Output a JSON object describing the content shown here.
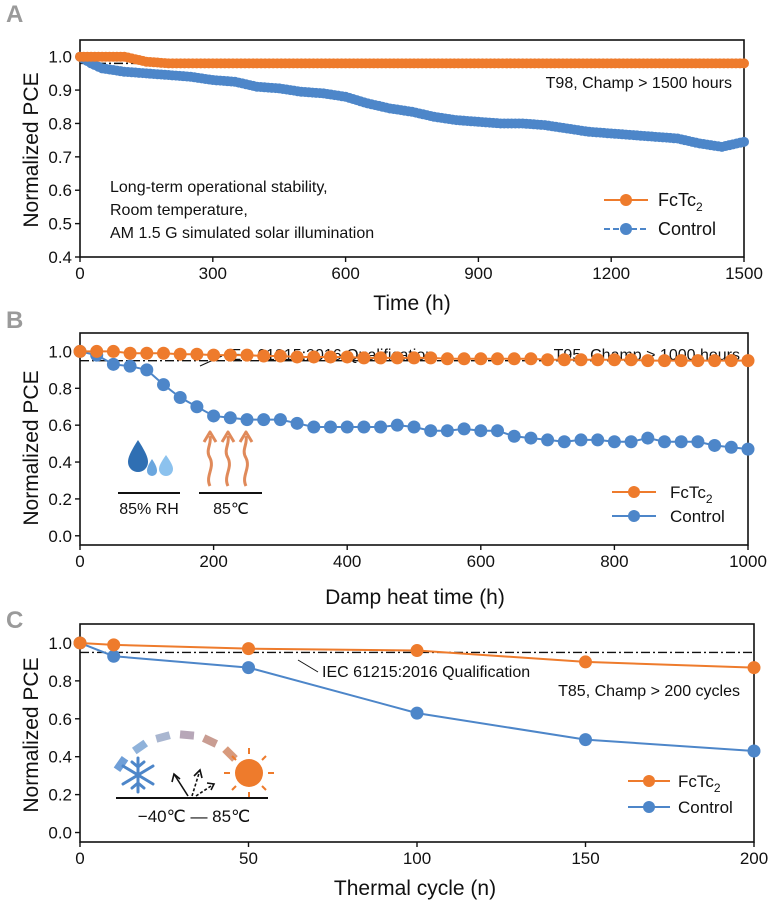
{
  "colors": {
    "fctc2": "#ee7b2c",
    "control": "#4d86c9",
    "axis": "#111111",
    "letter": "#9a9a9a"
  },
  "chart_data": [
    {
      "panel": "A",
      "type": "scatter",
      "xlabel": "Time (h)",
      "ylabel": "Normalized PCE",
      "xlim": [
        0,
        1500
      ],
      "ylim": [
        0.4,
        1.05
      ],
      "xticks": [
        0,
        300,
        600,
        900,
        1200,
        1500
      ],
      "yticks": [
        0.4,
        0.5,
        0.6,
        0.7,
        0.8,
        0.9,
        1.0
      ],
      "ytick_labels": [
        "0.4",
        "0.5",
        "0.6",
        "0.7",
        "0.8",
        "0.9",
        "1.0"
      ],
      "qualification_line": 0.98,
      "annotations": [
        "T98, Champ > 1500 hours",
        "Long-term operational stability,",
        "Room temperature,",
        "AM 1.5 G simulated solar illumination"
      ],
      "legend_position": "bottom-right",
      "series": [
        {
          "name": "FcTc2",
          "x": [
            0,
            50,
            100,
            150,
            200,
            300,
            400,
            500,
            600,
            700,
            800,
            900,
            1000,
            1100,
            1200,
            1300,
            1400,
            1500
          ],
          "values": [
            1.0,
            1.0,
            1.0,
            0.985,
            0.98,
            0.98,
            0.98,
            0.98,
            0.98,
            0.98,
            0.98,
            0.98,
            0.98,
            0.98,
            0.98,
            0.98,
            0.98,
            0.98
          ]
        },
        {
          "name": "Control",
          "x": [
            0,
            25,
            50,
            100,
            150,
            200,
            250,
            300,
            350,
            400,
            450,
            500,
            550,
            600,
            650,
            700,
            750,
            800,
            850,
            900,
            950,
            1000,
            1050,
            1100,
            1150,
            1200,
            1250,
            1300,
            1350,
            1400,
            1450,
            1500
          ],
          "values": [
            1.0,
            0.98,
            0.965,
            0.955,
            0.95,
            0.945,
            0.94,
            0.93,
            0.925,
            0.91,
            0.905,
            0.895,
            0.89,
            0.88,
            0.86,
            0.845,
            0.835,
            0.82,
            0.81,
            0.805,
            0.8,
            0.8,
            0.795,
            0.785,
            0.775,
            0.77,
            0.765,
            0.76,
            0.755,
            0.74,
            0.73,
            0.745
          ]
        }
      ]
    },
    {
      "panel": "B",
      "type": "line",
      "xlabel": "Damp heat time (h)",
      "ylabel": "Normalized PCE",
      "xlim": [
        0,
        1000
      ],
      "ylim": [
        -0.05,
        1.1
      ],
      "xticks": [
        0,
        200,
        400,
        600,
        800,
        1000
      ],
      "yticks": [
        0.0,
        0.2,
        0.4,
        0.6,
        0.8,
        1.0
      ],
      "ytick_labels": [
        "0.0",
        "0.2",
        "0.4",
        "0.6",
        "0.8",
        "1.0"
      ],
      "qualification_line": 0.95,
      "annotations": [
        "IEC 61215:2016 Qualification",
        "T95, Champ > 1000 hours",
        "85% RH",
        "85℃"
      ],
      "legend_position": "bottom-right",
      "series": [
        {
          "name": "FcTc2",
          "x": [
            0,
            25,
            50,
            75,
            100,
            125,
            150,
            175,
            200,
            225,
            250,
            275,
            300,
            325,
            350,
            375,
            400,
            425,
            450,
            475,
            500,
            525,
            550,
            575,
            600,
            625,
            650,
            675,
            700,
            725,
            750,
            775,
            800,
            825,
            850,
            875,
            900,
            925,
            950,
            975,
            1000
          ],
          "values": [
            1.0,
            1.0,
            1.0,
            0.99,
            0.99,
            0.99,
            0.985,
            0.985,
            0.98,
            0.98,
            0.98,
            0.975,
            0.975,
            0.97,
            0.97,
            0.97,
            0.97,
            0.965,
            0.965,
            0.965,
            0.965,
            0.965,
            0.96,
            0.96,
            0.96,
            0.96,
            0.96,
            0.96,
            0.955,
            0.955,
            0.955,
            0.955,
            0.955,
            0.955,
            0.95,
            0.95,
            0.95,
            0.95,
            0.95,
            0.95,
            0.95
          ]
        },
        {
          "name": "Control",
          "x": [
            0,
            25,
            50,
            75,
            100,
            125,
            150,
            175,
            200,
            225,
            250,
            275,
            300,
            325,
            350,
            375,
            400,
            425,
            450,
            475,
            500,
            525,
            550,
            575,
            600,
            625,
            650,
            675,
            700,
            725,
            750,
            775,
            800,
            825,
            850,
            875,
            900,
            925,
            950,
            975,
            1000
          ],
          "values": [
            1.0,
            0.98,
            0.93,
            0.92,
            0.9,
            0.82,
            0.75,
            0.7,
            0.65,
            0.64,
            0.63,
            0.63,
            0.63,
            0.61,
            0.59,
            0.59,
            0.59,
            0.59,
            0.59,
            0.6,
            0.59,
            0.57,
            0.57,
            0.58,
            0.57,
            0.57,
            0.54,
            0.53,
            0.52,
            0.51,
            0.52,
            0.52,
            0.51,
            0.51,
            0.53,
            0.51,
            0.51,
            0.51,
            0.49,
            0.48,
            0.47
          ]
        }
      ]
    },
    {
      "panel": "C",
      "type": "line",
      "xlabel": "Thermal cycle (n)",
      "ylabel": "Normalized PCE",
      "xlim": [
        0,
        200
      ],
      "ylim": [
        -0.05,
        1.1
      ],
      "xticks": [
        0,
        50,
        100,
        150,
        200
      ],
      "yticks": [
        0.0,
        0.2,
        0.4,
        0.6,
        0.8,
        1.0
      ],
      "ytick_labels": [
        "0.0",
        "0.2",
        "0.4",
        "0.6",
        "0.8",
        "1.0"
      ],
      "qualification_line": 0.95,
      "annotations": [
        "IEC 61215:2016 Qualification",
        "T85, Champ > 200 cycles",
        "−40℃ — 85℃"
      ],
      "legend_position": "bottom-right",
      "series": [
        {
          "name": "FcTc2",
          "x": [
            0,
            10,
            50,
            100,
            150,
            200
          ],
          "values": [
            1.0,
            0.99,
            0.97,
            0.96,
            0.9,
            0.87
          ]
        },
        {
          "name": "Control",
          "x": [
            0,
            10,
            50,
            100,
            150,
            200
          ],
          "values": [
            1.0,
            0.93,
            0.87,
            0.63,
            0.49,
            0.43
          ]
        }
      ]
    }
  ],
  "legend": {
    "fctc2_base": "FcTc",
    "fctc2_sub": "2",
    "control": "Control"
  },
  "icons": {
    "panel_b": [
      "water-drops-icon",
      "heat-waves-icon"
    ],
    "panel_c": [
      "snowflake-icon",
      "sun-icon",
      "arrows-icon"
    ]
  }
}
